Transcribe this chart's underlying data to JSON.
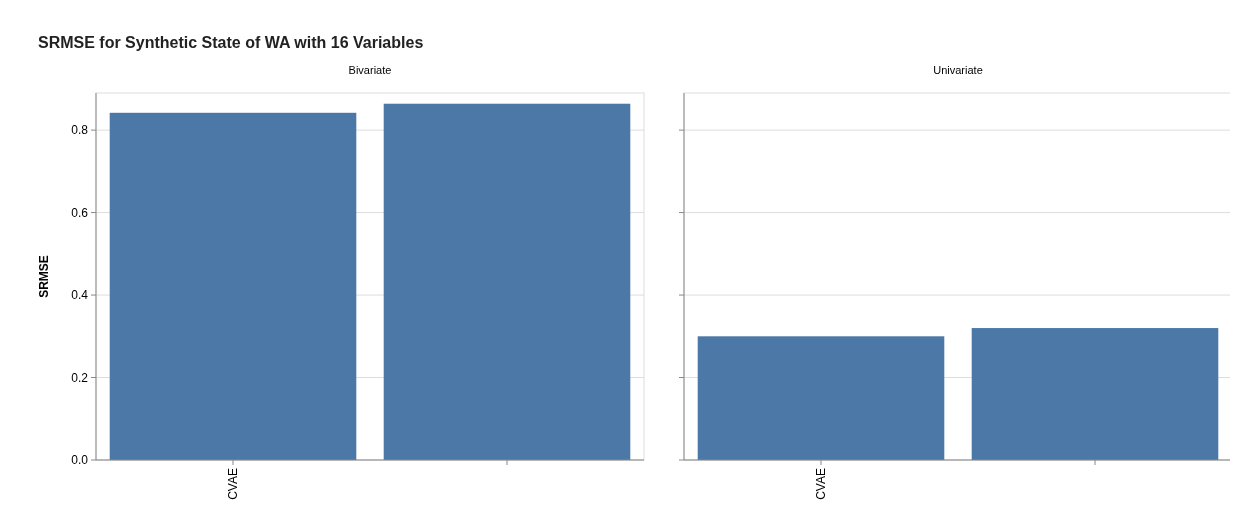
{
  "chart_data": [
    {
      "type": "bar",
      "title": "SRMSE for Synthetic State of WA with 16 Variables",
      "subtitle": "Bivariate",
      "ylabel": "SRMSE",
      "categories": [
        "CVAE",
        null
      ],
      "values": [
        0.842,
        0.864
      ],
      "color": "#4c78a8",
      "ylim": [
        0,
        0.89
      ],
      "yticks": [
        {
          "value": 0,
          "label": "0.0"
        },
        0.2,
        0.4,
        0.6,
        0.8
      ],
      "grid": "y"
    },
    {
      "type": "bar",
      "subtitle": "Univariate",
      "categories": [
        "CVAE",
        null
      ],
      "values": [
        0.3,
        0.32
      ],
      "color": "#4c78a8",
      "ylim": [
        0,
        0.89
      ],
      "yticks": [
        0,
        0.2,
        0.4,
        0.6,
        0.8
      ],
      "grid": "y",
      "tick_labels": "x"
    }
  ]
}
